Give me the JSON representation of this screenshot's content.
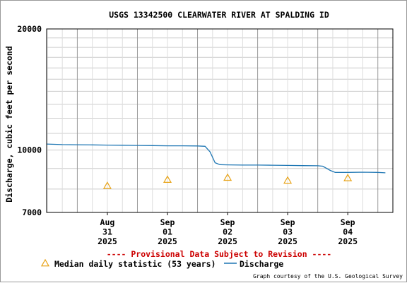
{
  "chart_data": {
    "type": "line",
    "title": "USGS 13342500 CLEARWATER RIVER AT SPALDING ID",
    "ylabel": "Discharge, cubic feet per second",
    "yscale": "log",
    "ylim": [
      7000,
      20000
    ],
    "yticks": [
      7000,
      10000,
      20000
    ],
    "grid": true,
    "xlim": [
      "2025-08-30T11:45",
      "2025-09-05T06:00"
    ],
    "xticks": [
      {
        "date": "2025-08-31T12:00",
        "lines": [
          "Aug",
          "31",
          "2025"
        ]
      },
      {
        "date": "2025-09-01T12:00",
        "lines": [
          "Sep",
          "01",
          "2025"
        ]
      },
      {
        "date": "2025-09-02T12:00",
        "lines": [
          "Sep",
          "02",
          "2025"
        ]
      },
      {
        "date": "2025-09-03T12:00",
        "lines": [
          "Sep",
          "03",
          "2025"
        ]
      },
      {
        "date": "2025-09-04T12:00",
        "lines": [
          "Sep",
          "04",
          "2025"
        ]
      }
    ],
    "series": [
      {
        "name": "Discharge",
        "kind": "line",
        "color": "#1f77b4",
        "points": [
          {
            "x": "2025-08-30T11:45",
            "y": 10350
          },
          {
            "x": "2025-08-30T18:00",
            "y": 10320
          },
          {
            "x": "2025-08-31T00:00",
            "y": 10310
          },
          {
            "x": "2025-08-31T06:00",
            "y": 10300
          },
          {
            "x": "2025-08-31T12:00",
            "y": 10290
          },
          {
            "x": "2025-08-31T18:00",
            "y": 10280
          },
          {
            "x": "2025-09-01T00:00",
            "y": 10270
          },
          {
            "x": "2025-09-01T06:00",
            "y": 10260
          },
          {
            "x": "2025-09-01T12:00",
            "y": 10250
          },
          {
            "x": "2025-09-01T18:00",
            "y": 10250
          },
          {
            "x": "2025-09-02T00:00",
            "y": 10240
          },
          {
            "x": "2025-09-02T03:00",
            "y": 10220
          },
          {
            "x": "2025-09-02T05:00",
            "y": 9900
          },
          {
            "x": "2025-09-02T07:00",
            "y": 9300
          },
          {
            "x": "2025-09-02T09:00",
            "y": 9200
          },
          {
            "x": "2025-09-02T12:00",
            "y": 9190
          },
          {
            "x": "2025-09-02T18:00",
            "y": 9180
          },
          {
            "x": "2025-09-03T00:00",
            "y": 9180
          },
          {
            "x": "2025-09-03T06:00",
            "y": 9170
          },
          {
            "x": "2025-09-03T12:00",
            "y": 9160
          },
          {
            "x": "2025-09-03T18:00",
            "y": 9150
          },
          {
            "x": "2025-09-04T00:00",
            "y": 9140
          },
          {
            "x": "2025-09-04T02:00",
            "y": 9120
          },
          {
            "x": "2025-09-04T05:00",
            "y": 8900
          },
          {
            "x": "2025-09-04T07:00",
            "y": 8800
          },
          {
            "x": "2025-09-04T12:00",
            "y": 8800
          },
          {
            "x": "2025-09-04T18:00",
            "y": 8810
          },
          {
            "x": "2025-09-05T00:00",
            "y": 8800
          },
          {
            "x": "2025-09-05T03:00",
            "y": 8780
          }
        ]
      },
      {
        "name": "Median daily statistic (53 years)",
        "kind": "marker",
        "marker": "triangle",
        "color": "#e8a317",
        "points": [
          {
            "x": "2025-08-31T12:00",
            "y": 8150
          },
          {
            "x": "2025-09-01T12:00",
            "y": 8440
          },
          {
            "x": "2025-09-02T12:00",
            "y": 8540
          },
          {
            "x": "2025-09-03T12:00",
            "y": 8400
          },
          {
            "x": "2025-09-04T12:00",
            "y": 8520
          }
        ]
      }
    ],
    "notice": "---- Provisional Data Subject to Revision ----",
    "notice_color": "#cc0000",
    "legend": {
      "placement": "bottom",
      "items": [
        {
          "label": "Median daily statistic (53 years)",
          "symbol": "triangle",
          "color": "#e8a317"
        },
        {
          "label": "Discharge",
          "symbol": "line",
          "color": "#1f77b4"
        }
      ]
    },
    "credit": "Graph courtesy of the U.S. Geological Survey"
  }
}
